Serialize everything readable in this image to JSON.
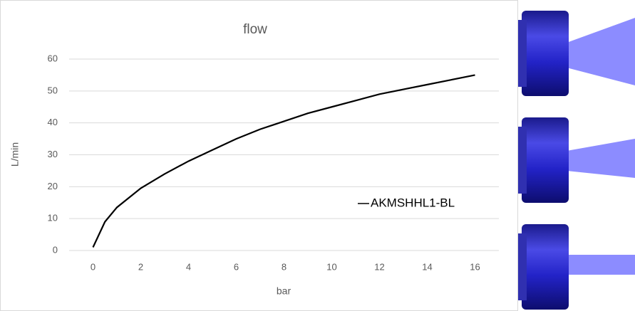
{
  "chart_data": {
    "type": "line",
    "title": "flow",
    "x_label": "bar",
    "y_label": "L/min",
    "x": [
      0,
      0.5,
      1,
      2,
      3,
      4,
      5,
      6,
      7,
      8,
      9,
      10,
      11,
      12,
      13,
      14,
      15,
      16
    ],
    "series": [
      {
        "name": "AKMSHHL1-BL",
        "color": "#000000",
        "values": [
          1,
          9,
          13.5,
          19.5,
          24,
          28,
          31.5,
          35,
          38,
          40.5,
          43,
          45,
          47,
          49,
          50.5,
          52,
          53.5,
          55
        ]
      }
    ],
    "xlim": [
      -1,
      17
    ],
    "xticks": [
      0,
      2,
      4,
      6,
      8,
      10,
      12,
      14,
      16
    ],
    "ylim": [
      0,
      60
    ],
    "yticks": [
      0,
      10,
      20,
      30,
      40,
      50,
      60
    ],
    "grid": true
  }
}
